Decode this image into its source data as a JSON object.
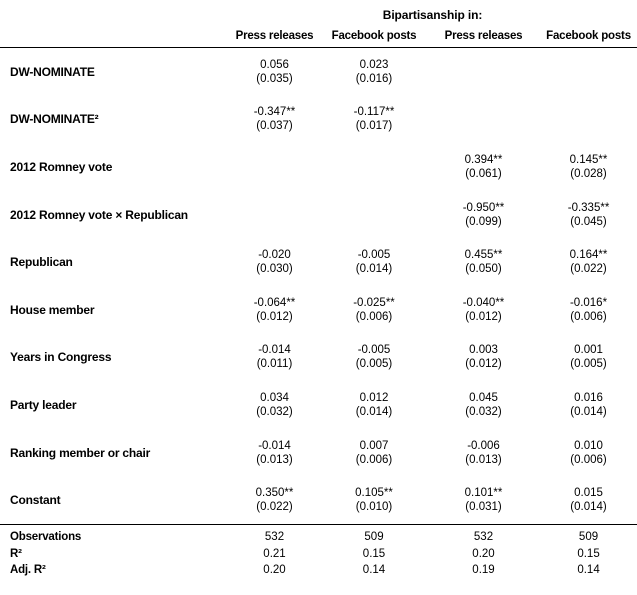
{
  "chart_data": {
    "type": "table",
    "title": "Bipartisanship in:",
    "columns": [
      "Press releases",
      "Facebook posts",
      "Press releases",
      "Facebook posts"
    ],
    "rows": [
      {
        "label": "DW-NOMINATE",
        "cells": [
          {
            "est": "0.056",
            "se": "(0.035)"
          },
          {
            "est": "0.023",
            "se": "(0.016)"
          },
          null,
          null
        ]
      },
      {
        "label": "DW-NOMINATE²",
        "cells": [
          {
            "est": "-0.347**",
            "se": "(0.037)"
          },
          {
            "est": "-0.117**",
            "se": "(0.017)"
          },
          null,
          null
        ]
      },
      {
        "label": "2012 Romney vote",
        "cells": [
          null,
          null,
          {
            "est": "0.394**",
            "se": "(0.061)"
          },
          {
            "est": "0.145**",
            "se": "(0.028)"
          }
        ]
      },
      {
        "label": "2012 Romney vote × Republican",
        "cells": [
          null,
          null,
          {
            "est": "-0.950**",
            "se": "(0.099)"
          },
          {
            "est": "-0.335**",
            "se": "(0.045)"
          }
        ]
      },
      {
        "label": "Republican",
        "cells": [
          {
            "est": "-0.020",
            "se": "(0.030)"
          },
          {
            "est": "-0.005",
            "se": "(0.014)"
          },
          {
            "est": "0.455**",
            "se": "(0.050)"
          },
          {
            "est": "0.164**",
            "se": "(0.022)"
          }
        ]
      },
      {
        "label": "House member",
        "cells": [
          {
            "est": "-0.064**",
            "se": "(0.012)"
          },
          {
            "est": "-0.025**",
            "se": "(0.006)"
          },
          {
            "est": "-0.040**",
            "se": "(0.012)"
          },
          {
            "est": "-0.016*",
            "se": "(0.006)"
          }
        ]
      },
      {
        "label": "Years in Congress",
        "cells": [
          {
            "est": "-0.014",
            "se": "(0.011)"
          },
          {
            "est": "-0.005",
            "se": "(0.005)"
          },
          {
            "est": "0.003",
            "se": "(0.012)"
          },
          {
            "est": "0.001",
            "se": "(0.005)"
          }
        ]
      },
      {
        "label": "Party leader",
        "cells": [
          {
            "est": "0.034",
            "se": "(0.032)"
          },
          {
            "est": "0.012",
            "se": "(0.014)"
          },
          {
            "est": "0.045",
            "se": "(0.032)"
          },
          {
            "est": "0.016",
            "se": "(0.014)"
          }
        ]
      },
      {
        "label": "Ranking member or chair",
        "cells": [
          {
            "est": "-0.014",
            "se": "(0.013)"
          },
          {
            "est": "0.007",
            "se": "(0.006)"
          },
          {
            "est": "-0.006",
            "se": "(0.013)"
          },
          {
            "est": "0.010",
            "se": "(0.006)"
          }
        ]
      },
      {
        "label": "Constant",
        "cells": [
          {
            "est": "0.350**",
            "se": "(0.022)"
          },
          {
            "est": "0.105**",
            "se": "(0.010)"
          },
          {
            "est": "0.101**",
            "se": "(0.031)"
          },
          {
            "est": "0.015",
            "se": "(0.014)"
          }
        ]
      }
    ],
    "summary_rows": [
      {
        "label": "Observations",
        "values": [
          "532",
          "509",
          "532",
          "509"
        ]
      },
      {
        "label": "R²",
        "values": [
          "0.21",
          "0.15",
          "0.20",
          "0.15"
        ]
      },
      {
        "label": "Adj. R²",
        "values": [
          "0.20",
          "0.14",
          "0.19",
          "0.14"
        ]
      }
    ],
    "layout_hints": {
      "grid": "off",
      "header_rule": "full-width",
      "summary_rule": "full-width"
    },
    "colors": {
      "text": "#000000",
      "background": "#ffffff",
      "rule": "#000000"
    }
  }
}
